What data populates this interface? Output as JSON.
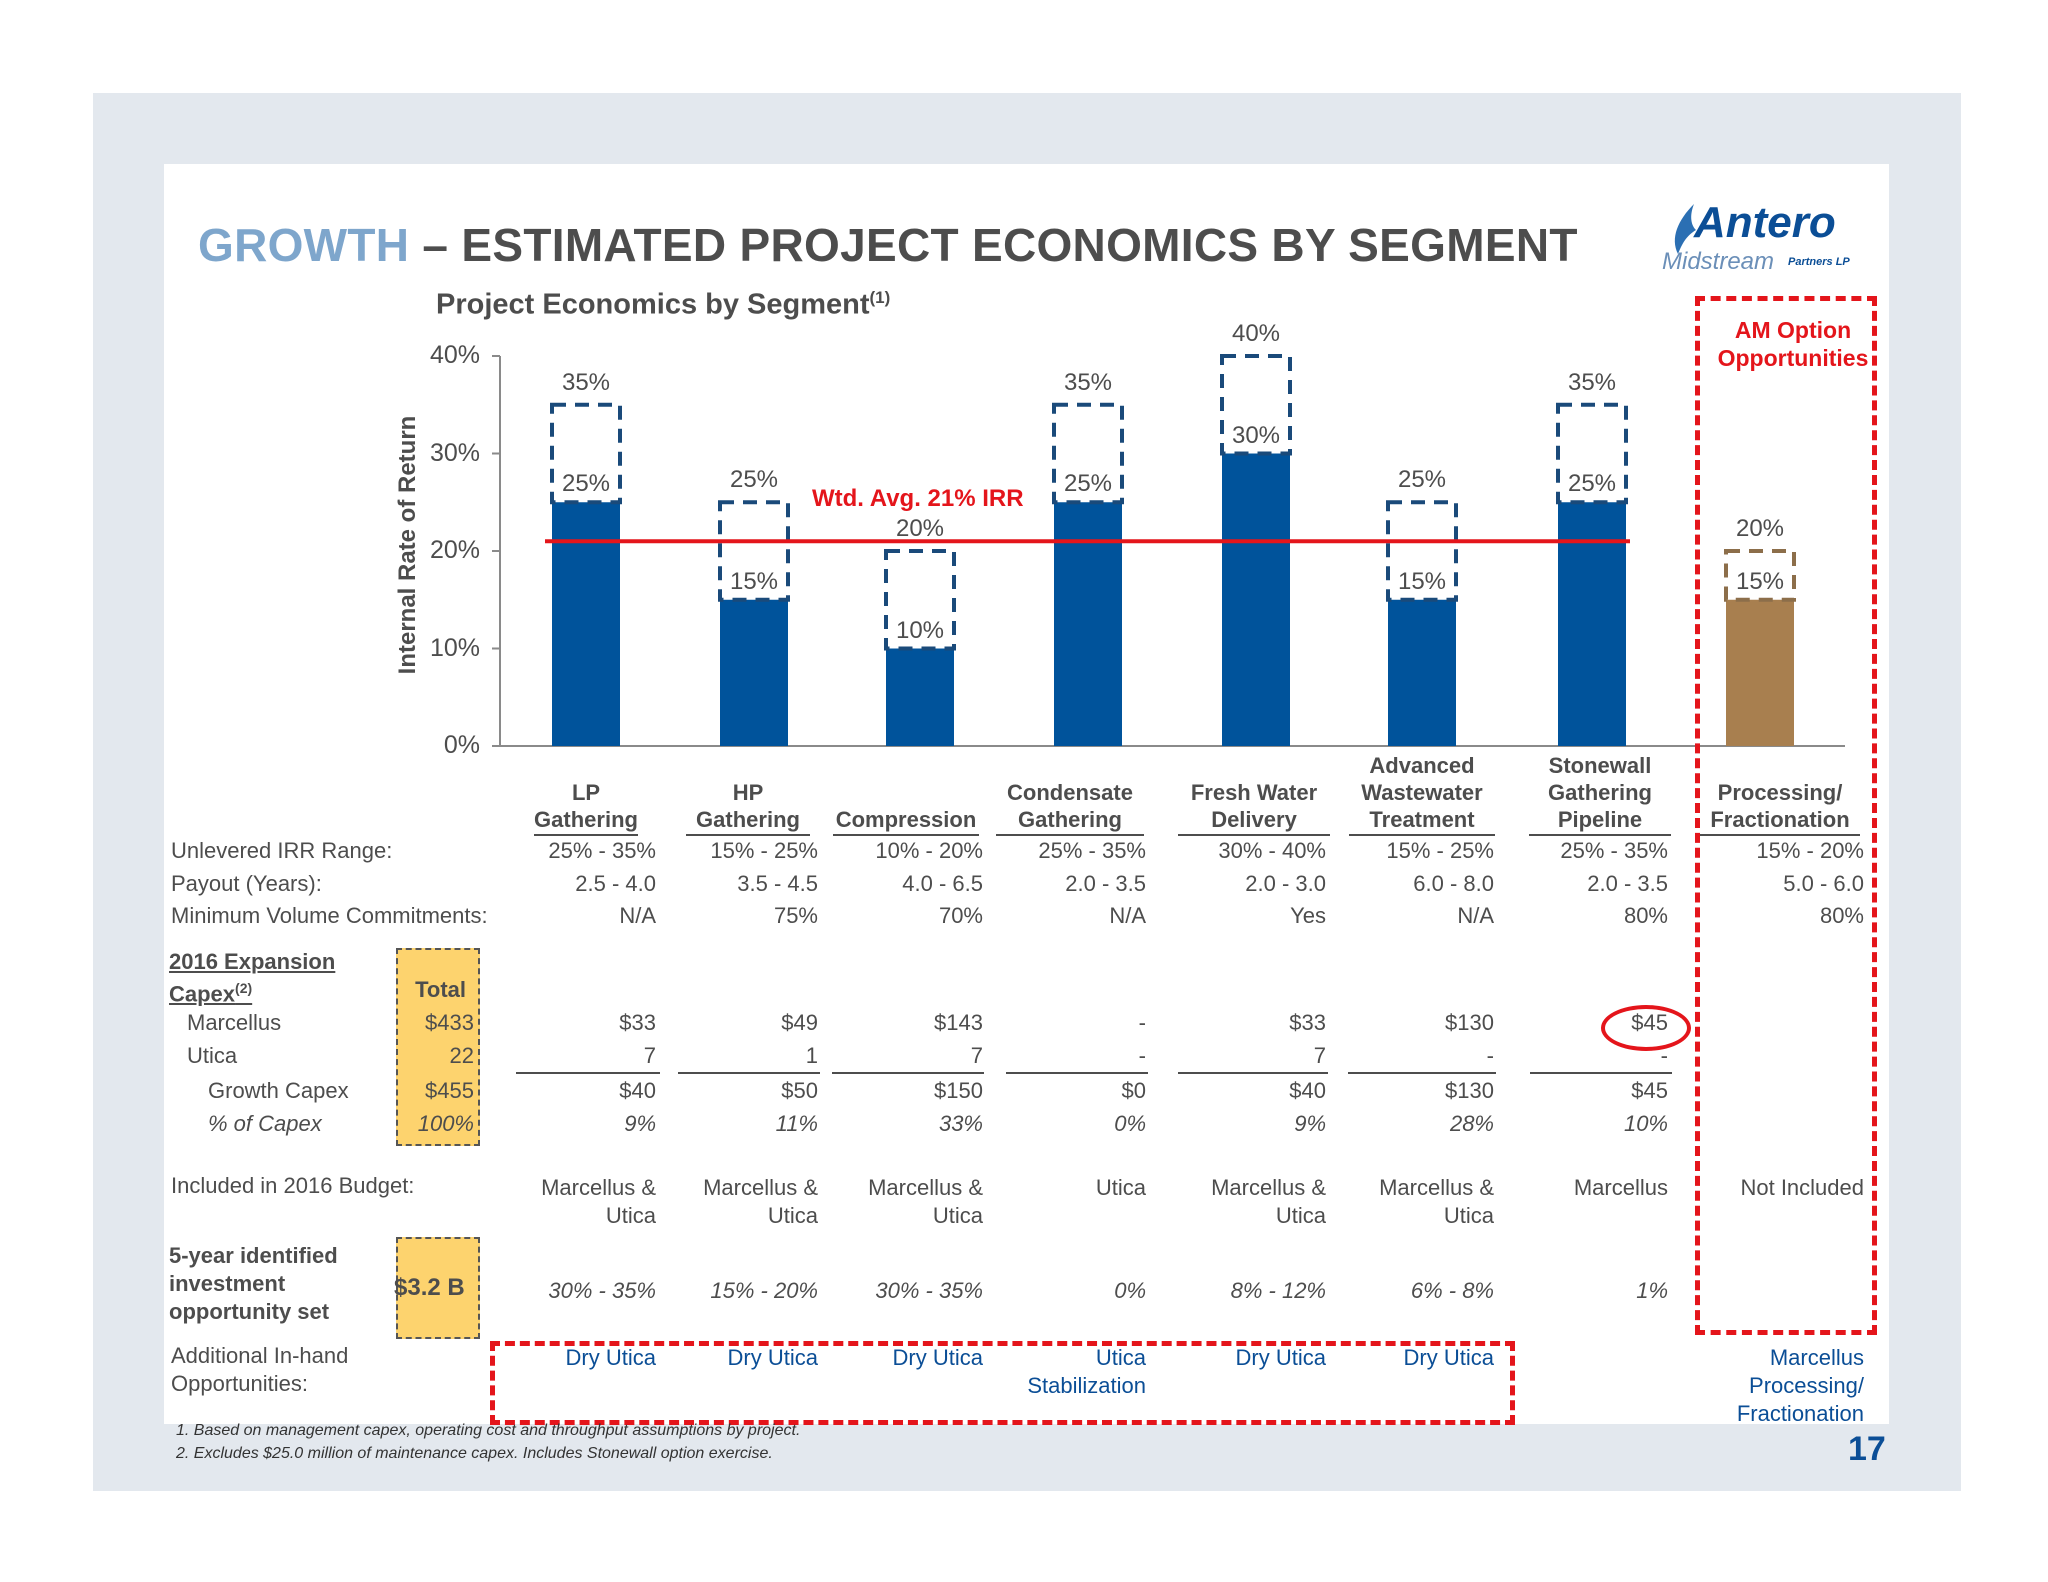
{
  "title": {
    "accent": "GROWTH",
    "rest": " – ESTIMATED PROJECT ECONOMICS BY SEGMENT"
  },
  "logo": {
    "brand": "Antero",
    "sub": "Midstream",
    "suffix": "Partners LP"
  },
  "chart_data": {
    "type": "bar",
    "title": "Project Economics by Segment",
    "title_sup": "(1)",
    "ylabel": "Internal Rate of Return",
    "ylim": [
      0,
      40
    ],
    "yticks": [
      "0%",
      "10%",
      "20%",
      "30%",
      "40%"
    ],
    "categories": [
      "LP Gathering",
      "HP Gathering",
      "Compression",
      "Condensate Gathering",
      "Fresh Water Delivery",
      "Advanced Wastewater Treatment",
      "Stonewall Gathering Pipeline",
      "Processing/ Fractionation"
    ],
    "low": [
      25,
      15,
      10,
      25,
      30,
      15,
      25,
      15
    ],
    "high": [
      35,
      25,
      20,
      35,
      40,
      25,
      35,
      20
    ],
    "low_labels": [
      "25%",
      "15%",
      "10%",
      "25%",
      "30%",
      "15%",
      "25%",
      "15%"
    ],
    "high_labels": [
      "35%",
      "25%",
      "20%",
      "35%",
      "40%",
      "25%",
      "35%",
      "20%"
    ],
    "average": {
      "value": 21,
      "label": "Wtd. Avg. 21% IRR"
    },
    "colors": {
      "bar": "#00539b",
      "option_bar": "#a87f4f",
      "avg_line": "#e4151b",
      "high_outline": "#1a4a7a",
      "option_outline": "#8c6e4a"
    }
  },
  "option_box": {
    "label": "AM Option Opportunities"
  },
  "columns": [
    {
      "line1": "",
      "line2": "LP",
      "line3": "Gathering"
    },
    {
      "line1": "",
      "line2": "HP",
      "line3": "Gathering"
    },
    {
      "line1": "",
      "line2": "",
      "line3": "Compression"
    },
    {
      "line1": "",
      "line2": "Condensate",
      "line3": "Gathering"
    },
    {
      "line1": "",
      "line2": "Fresh Water",
      "line3": "Delivery"
    },
    {
      "line1": "Advanced",
      "line2": "Wastewater",
      "line3": "Treatment"
    },
    {
      "line1": "Stonewall",
      "line2": "Gathering",
      "line3": "Pipeline"
    },
    {
      "line1": "",
      "line2": "Processing/",
      "line3": "Fractionation"
    }
  ],
  "rows": {
    "irr_range": {
      "label": "Unlevered IRR Range:",
      "values": [
        "25% - 35%",
        "15% - 25%",
        "10% - 20%",
        "25% - 35%",
        "30% - 40%",
        "15% - 25%",
        "25% - 35%",
        "15% - 20%"
      ]
    },
    "payout": {
      "label": "Payout (Years):",
      "values": [
        "2.5 - 4.0",
        "3.5 - 4.5",
        "4.0 - 6.5",
        "2.0 - 3.5",
        "2.0 - 3.0",
        "6.0 - 8.0",
        "2.0 - 3.5",
        "5.0 - 6.0"
      ]
    },
    "mvc": {
      "label": "Minimum Volume Commitments:",
      "values": [
        "N/A",
        "75%",
        "70%",
        "N/A",
        "Yes",
        "N/A",
        "80%",
        "80%"
      ]
    }
  },
  "capex": {
    "heading1": "2016 Expansion",
    "heading2": "Capex",
    "heading_sup": "(2)",
    "total_label": "Total",
    "marcellus": {
      "label": "Marcellus",
      "total": "$433",
      "values": [
        "$33",
        "$49",
        "$143",
        "-",
        "$33",
        "$130",
        "$45"
      ]
    },
    "utica": {
      "label": "Utica",
      "total": "22",
      "values": [
        "7",
        "1",
        "7",
        "-",
        "7",
        "-",
        "-"
      ]
    },
    "growth": {
      "label": "Growth Capex",
      "total": "$455",
      "values": [
        "$40",
        "$50",
        "$150",
        "$0",
        "$40",
        "$130",
        "$45"
      ]
    },
    "pct": {
      "label": "% of Capex",
      "total": "100%",
      "values": [
        "9%",
        "11%",
        "33%",
        "0%",
        "9%",
        "28%",
        "10%"
      ]
    }
  },
  "budget": {
    "label": "Included in 2016 Budget:",
    "values": [
      [
        "Marcellus &",
        "Utica"
      ],
      [
        "Marcellus &",
        "Utica"
      ],
      [
        "Marcellus &",
        "Utica"
      ],
      [
        "Utica",
        ""
      ],
      [
        "Marcellus &",
        "Utica"
      ],
      [
        "Marcellus &",
        "Utica"
      ],
      [
        "Marcellus",
        ""
      ],
      [
        "Not Included",
        ""
      ]
    ]
  },
  "five_year": {
    "label1": "5-year identified",
    "label2": "investment",
    "label3": "opportunity set",
    "total": "$3.2 B",
    "values": [
      "30% - 35%",
      "15% - 20%",
      "30% - 35%",
      "0%",
      "8% - 12%",
      "6% - 8%",
      "1%"
    ]
  },
  "additional": {
    "label1": "Additional In-hand",
    "label2": "Opportunities:",
    "values": [
      [
        "Dry Utica",
        ""
      ],
      [
        "Dry Utica",
        ""
      ],
      [
        "Dry Utica",
        ""
      ],
      [
        "Utica",
        "Stabilization"
      ],
      [
        "Dry Utica",
        ""
      ],
      [
        "Dry Utica",
        ""
      ],
      [
        "",
        ""
      ],
      [
        "Marcellus",
        "Processing/",
        "Fractionation"
      ]
    ]
  },
  "footnotes": [
    "1.  Based on management capex, operating cost and throughput assumptions by project.",
    "2.  Excludes $25.0 million of maintenance capex.  Includes Stonewall option exercise."
  ],
  "page_number": "17"
}
